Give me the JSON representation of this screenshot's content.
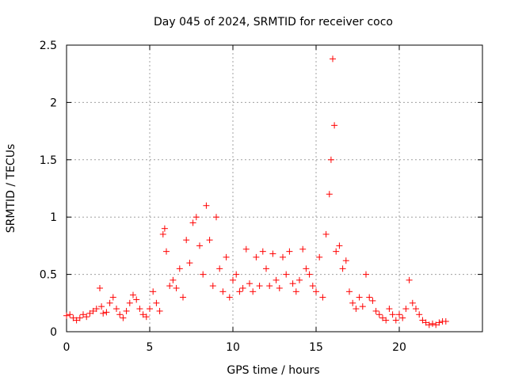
{
  "chart_data": {
    "type": "scatter",
    "title": "Day 045 of 2024, SRMTID for receiver coco",
    "xlabel": "GPS time / hours",
    "ylabel": "SRMTID / TECUs",
    "xlim": [
      0,
      25
    ],
    "ylim": [
      0,
      2.5
    ],
    "xticks": [
      0,
      5,
      10,
      15,
      20
    ],
    "yticks": [
      0,
      0.5,
      1,
      1.5,
      2,
      2.5
    ],
    "xtick_labels": [
      "0",
      "5",
      "10",
      "15",
      "20"
    ],
    "ytick_labels": [
      "0",
      "0.5",
      "1",
      "1.5",
      "2",
      "2.5"
    ],
    "grid": true,
    "legend": "none",
    "marker": "plus",
    "color": "#ff0000",
    "series": [
      {
        "name": "SRMTID",
        "x": [
          0.0,
          0.2,
          0.4,
          0.6,
          0.8,
          1.0,
          1.2,
          1.4,
          1.6,
          1.8,
          2.0,
          2.1,
          2.2,
          2.4,
          2.6,
          2.8,
          3.0,
          3.2,
          3.4,
          3.6,
          3.8,
          4.0,
          4.2,
          4.4,
          4.6,
          4.8,
          5.0,
          5.2,
          5.4,
          5.6,
          5.8,
          5.9,
          6.0,
          6.2,
          6.4,
          6.6,
          6.8,
          7.0,
          7.2,
          7.4,
          7.6,
          7.8,
          8.0,
          8.2,
          8.4,
          8.6,
          8.8,
          9.0,
          9.2,
          9.4,
          9.6,
          9.8,
          10.0,
          10.2,
          10.4,
          10.6,
          10.8,
          11.0,
          11.2,
          11.4,
          11.6,
          11.8,
          12.0,
          12.2,
          12.4,
          12.6,
          12.8,
          13.0,
          13.2,
          13.4,
          13.6,
          13.8,
          14.0,
          14.2,
          14.4,
          14.6,
          14.8,
          15.0,
          15.2,
          15.4,
          15.6,
          15.8,
          15.9,
          16.0,
          16.1,
          16.2,
          16.4,
          16.6,
          16.8,
          17.0,
          17.2,
          17.4,
          17.6,
          17.8,
          18.0,
          18.2,
          18.4,
          18.6,
          18.8,
          19.0,
          19.2,
          19.4,
          19.6,
          19.8,
          20.0,
          20.2,
          20.4,
          20.6,
          20.8,
          21.0,
          21.2,
          21.4,
          21.6,
          21.8,
          22.0,
          22.2,
          22.4,
          22.6,
          22.8
        ],
        "y": [
          0.14,
          0.15,
          0.12,
          0.1,
          0.12,
          0.15,
          0.13,
          0.16,
          0.18,
          0.2,
          0.38,
          0.22,
          0.16,
          0.17,
          0.25,
          0.3,
          0.2,
          0.15,
          0.12,
          0.18,
          0.25,
          0.32,
          0.28,
          0.2,
          0.15,
          0.13,
          0.2,
          0.35,
          0.25,
          0.18,
          0.85,
          0.9,
          0.7,
          0.4,
          0.45,
          0.38,
          0.55,
          0.3,
          0.8,
          0.6,
          0.95,
          1.0,
          0.75,
          0.5,
          1.1,
          0.8,
          0.4,
          1.0,
          0.55,
          0.35,
          0.65,
          0.3,
          0.45,
          0.5,
          0.35,
          0.38,
          0.72,
          0.42,
          0.35,
          0.65,
          0.4,
          0.7,
          0.55,
          0.4,
          0.68,
          0.45,
          0.38,
          0.65,
          0.5,
          0.7,
          0.42,
          0.35,
          0.45,
          0.72,
          0.55,
          0.5,
          0.4,
          0.35,
          0.65,
          0.3,
          0.85,
          1.2,
          1.5,
          2.38,
          1.8,
          0.7,
          0.75,
          0.55,
          0.62,
          0.35,
          0.25,
          0.2,
          0.3,
          0.22,
          0.5,
          0.3,
          0.27,
          0.18,
          0.15,
          0.12,
          0.1,
          0.2,
          0.15,
          0.1,
          0.15,
          0.12,
          0.2,
          0.45,
          0.25,
          0.2,
          0.15,
          0.1,
          0.08,
          0.06,
          0.07,
          0.06,
          0.08,
          0.09,
          0.09
        ]
      }
    ]
  }
}
